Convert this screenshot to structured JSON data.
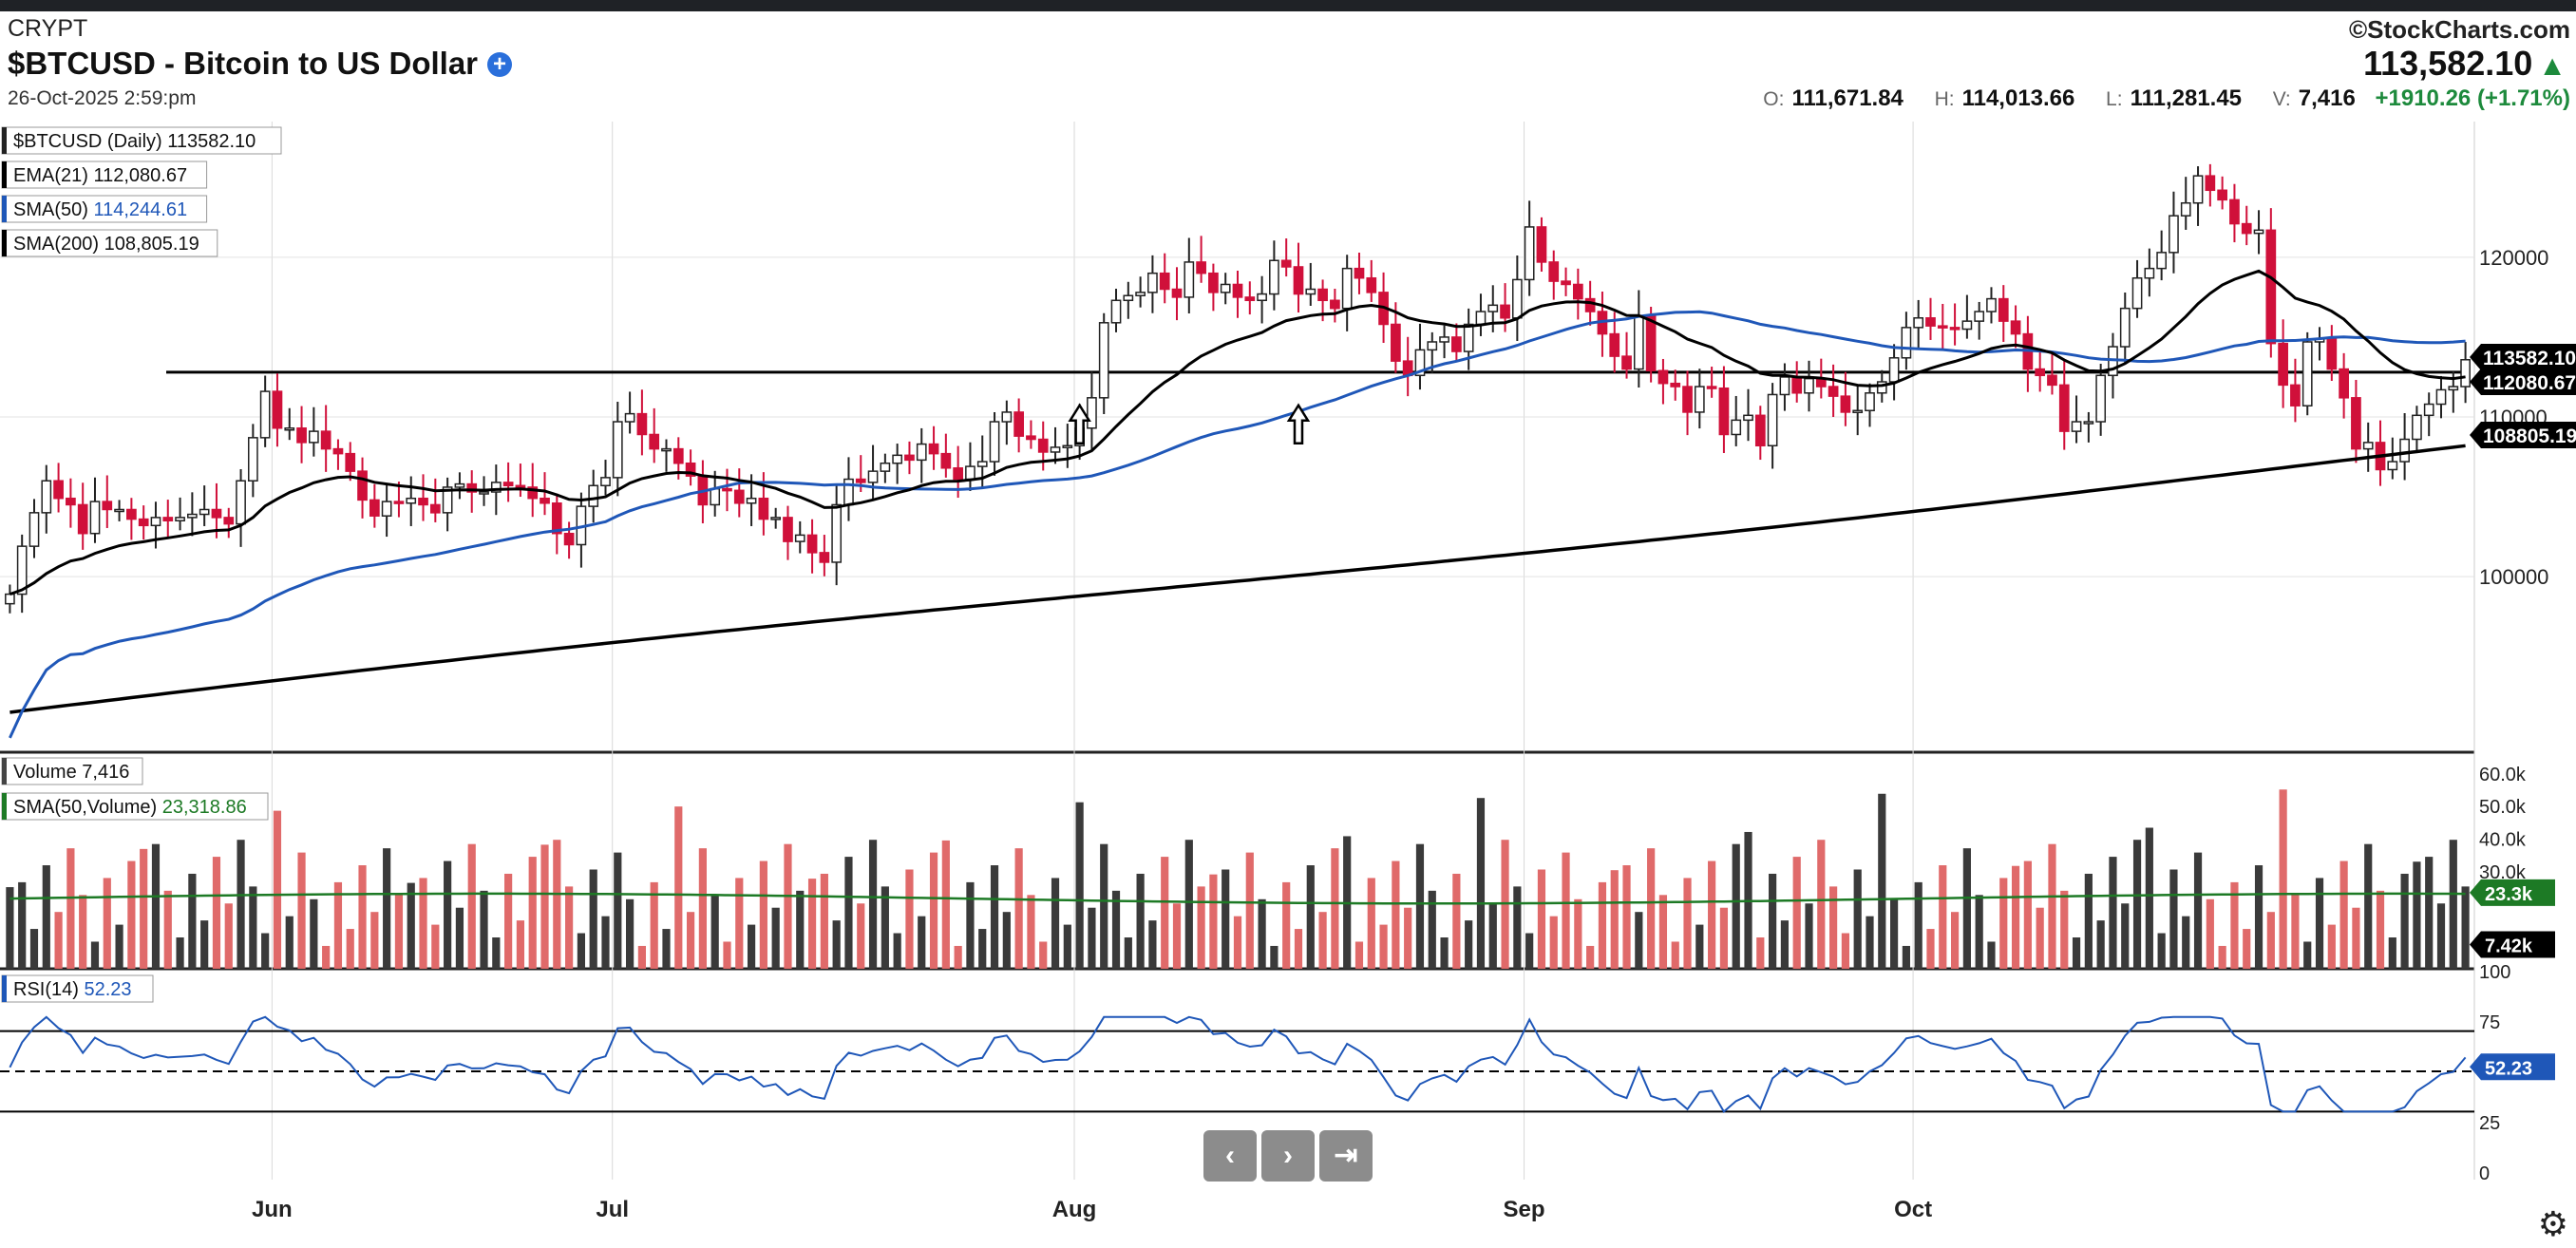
{
  "header": {
    "exchange": "CRYPT",
    "title": "$BTCUSD - Bitcoin to US Dollar",
    "plus_icon": "+",
    "date": "26-Oct-2025 2:59:pm",
    "brand": "©StockCharts.com",
    "last_price": "113,582.10",
    "up_icon": "▲",
    "open_label": "O:",
    "open": "111,671.84",
    "high_label": "H:",
    "high": "114,013.66",
    "low_label": "L:",
    "low": "111,281.45",
    "vol_label": "V:",
    "volume": "7,416",
    "change": "+1910.26 (+1.71%)"
  },
  "colors": {
    "up": "#ffffff",
    "down": "#d0103a",
    "ema": "#000000",
    "sma50": "#1f57b8",
    "sma200": "#000000",
    "vol_up": "#3a3a3a",
    "vol_down": "#e06a6a",
    "vol_sma": "#1d7a25",
    "rsi": "#1f57b8",
    "rsi_fill": "#6d8f5a"
  },
  "nav": {
    "prev_icon": "‹",
    "next_icon": "›",
    "end_icon": "⇥"
  },
  "settings_icon": "⚙",
  "chart_data": {
    "type": "candlestick",
    "symbol": "$BTCUSD",
    "interval": "Daily",
    "price_axis": {
      "ticks": [
        100000,
        110000,
        120000
      ],
      "labels": [
        "100000",
        "110000",
        "120000"
      ],
      "ylim": [
        89000,
        128500
      ]
    },
    "x_axis": {
      "tick_labels": [
        "Jun",
        "Jul",
        "Aug",
        "Sep",
        "Oct"
      ]
    },
    "legend": [
      {
        "label": "$BTCUSD (Daily)",
        "value": "113582.10"
      },
      {
        "label": "EMA(21)",
        "value": "112,080.67"
      },
      {
        "label": "SMA(50)",
        "value": "114,244.61"
      },
      {
        "label": "SMA(200)",
        "value": "108,805.19"
      }
    ],
    "axis_value_tags": [
      {
        "series": "price",
        "value": 113582.1,
        "label": "113582.10"
      },
      {
        "series": "ema21",
        "value": 112080.67,
        "label": "112080.67"
      },
      {
        "series": "sma200",
        "value": 108805.19,
        "label": "108805.19"
      }
    ],
    "horizontal_line": {
      "value": 112800
    },
    "arrows": [
      {
        "date": "Aug 2"
      },
      {
        "date": "Aug 21"
      }
    ],
    "closes": [
      98900,
      101900,
      104000,
      106000,
      104900,
      104500,
      102700,
      104700,
      104200,
      104200,
      103600,
      103200,
      103700,
      103500,
      103700,
      103900,
      104200,
      103700,
      103300,
      106000,
      108700,
      111600,
      109300,
      109300,
      108400,
      109100,
      108000,
      107700,
      106600,
      104800,
      103800,
      104700,
      104600,
      104900,
      104500,
      104000,
      105600,
      105800,
      105300,
      105300,
      105900,
      105700,
      105600,
      104900,
      104600,
      102700,
      102000,
      104400,
      105700,
      106200,
      109700,
      110200,
      108900,
      108000,
      108000,
      107100,
      106300,
      104500,
      105500,
      105400,
      104600,
      104900,
      103600,
      103700,
      102200,
      102600,
      101500,
      100900,
      104500,
      106100,
      105900,
      106600,
      107100,
      107600,
      107300,
      108300,
      107700,
      106800,
      106100,
      106900,
      107200,
      109700,
      110300,
      108800,
      108600,
      107800,
      108100,
      108200,
      109300,
      111200,
      115900,
      117300,
      117600,
      117800,
      119000,
      118000,
      117500,
      119700,
      119000,
      117800,
      118300,
      117500,
      117300,
      117700,
      119800,
      119400,
      117700,
      118000,
      117300,
      116800,
      119300,
      118700,
      117800,
      115800,
      113500,
      112600,
      114200,
      114700,
      115000,
      114100,
      115800,
      116600,
      117000,
      116200,
      118600,
      121900,
      119700,
      118500,
      118300,
      117400,
      116600,
      115200,
      113800,
      113000,
      116300,
      112900,
      112100,
      111900,
      110300,
      111900,
      111800,
      108900,
      109800,
      110100,
      108200,
      111400,
      112500,
      111500,
      112400,
      111900,
      111300,
      110300,
      110400,
      111500,
      112200,
      113700,
      115600,
      116200,
      115700,
      115600,
      115500,
      116000,
      116600,
      117400,
      116000,
      115200,
      113000,
      112600,
      112000,
      109100,
      109700,
      109700,
      112600,
      114400,
      116800,
      118700,
      119300,
      120300,
      122600,
      123400,
      125100,
      124200,
      123600,
      122100,
      121500,
      121700,
      114600,
      112000,
      110700,
      114700,
      114900,
      113000,
      111200,
      108000,
      108400,
      106700,
      107200,
      108600,
      110100,
      110800,
      111700,
      111900,
      113582
    ]
  },
  "volume_panel": {
    "legend": [
      {
        "label": "Volume",
        "value": "7,416"
      },
      {
        "label": "SMA(50,Volume)",
        "value": "23,318.86"
      }
    ],
    "axis_labels": [
      "60.0k",
      "50.0k",
      "40.0k",
      "30.0k"
    ],
    "axis_values": [
      60000,
      50000,
      40000,
      30000
    ],
    "tags": [
      {
        "label": "23.3k",
        "value": 23300
      },
      {
        "label": "7.42k",
        "value": 7416
      }
    ]
  },
  "rsi_panel": {
    "legend": [
      {
        "label": "RSI(14)",
        "value": "52.23"
      }
    ],
    "axis_labels": [
      "100",
      "75",
      "50",
      "25",
      "0"
    ],
    "axis_values": [
      100,
      75,
      50,
      25,
      0
    ],
    "levels": [
      70,
      50,
      30
    ],
    "tag": {
      "label": "52.23",
      "value": 52.23
    }
  }
}
